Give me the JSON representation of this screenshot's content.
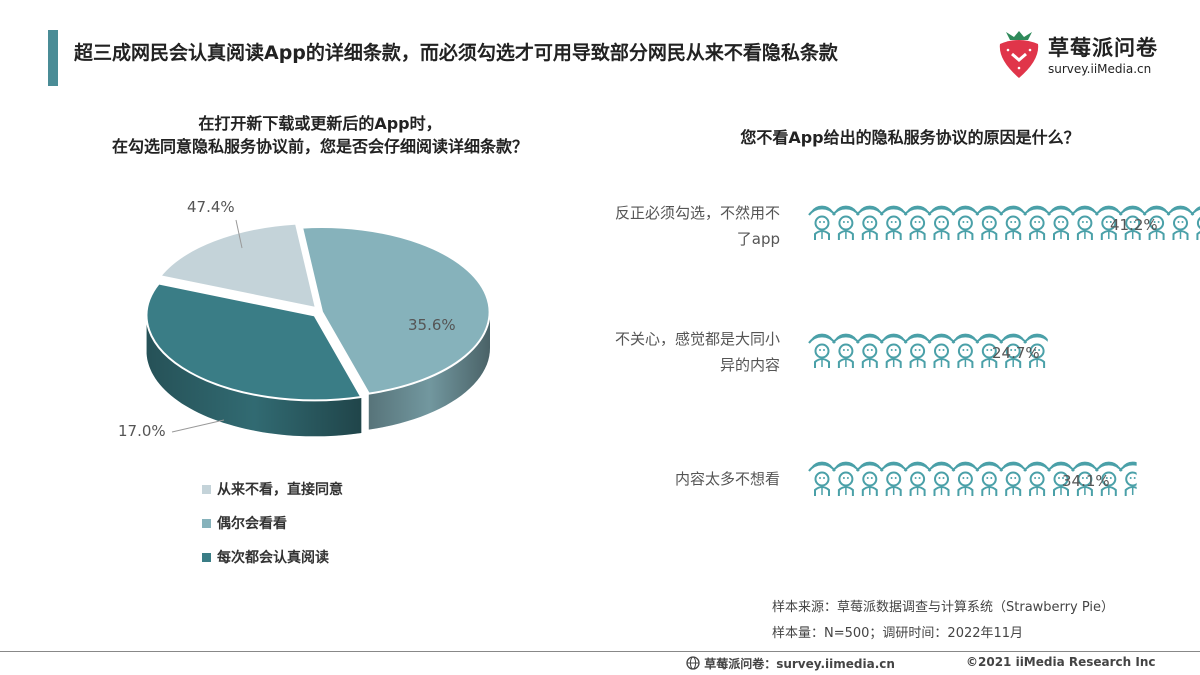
{
  "headline": "超三成网民会认真阅读App的详细条款，而必须勾选才可用导致部分网民从来不看隐私条款",
  "logo": {
    "name": "草莓派问卷",
    "url": "survey.iiMedia.cn",
    "icon": "strawberry-icon"
  },
  "colors": {
    "accent": "#4a8c96",
    "light": "#c4d3d9",
    "mid": "#86b2bb",
    "dark": "#3a7d86",
    "person": "#4aa0a8"
  },
  "chart_data": [
    {
      "type": "pie",
      "title": "在打开新下载或更新后的App时，\n在勾选同意隐私服务协议前，您是否会仔细阅读详细条款？",
      "title_lines": [
        "在打开新下载或更新后的App时，",
        "在勾选同意隐私服务协议前，您是否会仔细阅读详细条款？"
      ],
      "slices": [
        {
          "label": "从来不看，直接同意",
          "value": 17.0,
          "display": "17.0%",
          "color": "#c4d3d9"
        },
        {
          "label": "偶尔会看看",
          "value": 47.4,
          "display": "47.4%",
          "color": "#86b2bb"
        },
        {
          "label": "每次都会认真阅读",
          "value": 35.6,
          "display": "35.6%",
          "color": "#3a7d86"
        }
      ],
      "legend_position": "bottom"
    },
    {
      "type": "bar",
      "title": "您不看App给出的隐私服务协议的原因是什么？",
      "categories": [
        "反正必须勾选，不然用不了app",
        "不关心，感觉都是大同小异的内容",
        "内容太多不想看"
      ],
      "category_lines": [
        [
          "反正必须勾选，不然用不",
          "了app"
        ],
        [
          "不关心，感觉都是大同小",
          "异的内容"
        ],
        [
          "内容太多不想看"
        ]
      ],
      "values": [
        41.2,
        24.7,
        34.1
      ],
      "labels": [
        "41.2%",
        "24.7%",
        "34.1%"
      ],
      "mark": "person-icon"
    }
  ],
  "source": {
    "line1": "样本来源：草莓派数据调查与计算系统（Strawberry Pie）",
    "line2": "样本量：N=500；调研时间：2022年11月"
  },
  "footer": {
    "left": "草莓派问卷：survey.iimedia.cn",
    "left_icon": "globe-icon",
    "right": "©2021  iiMedia Research  Inc"
  }
}
